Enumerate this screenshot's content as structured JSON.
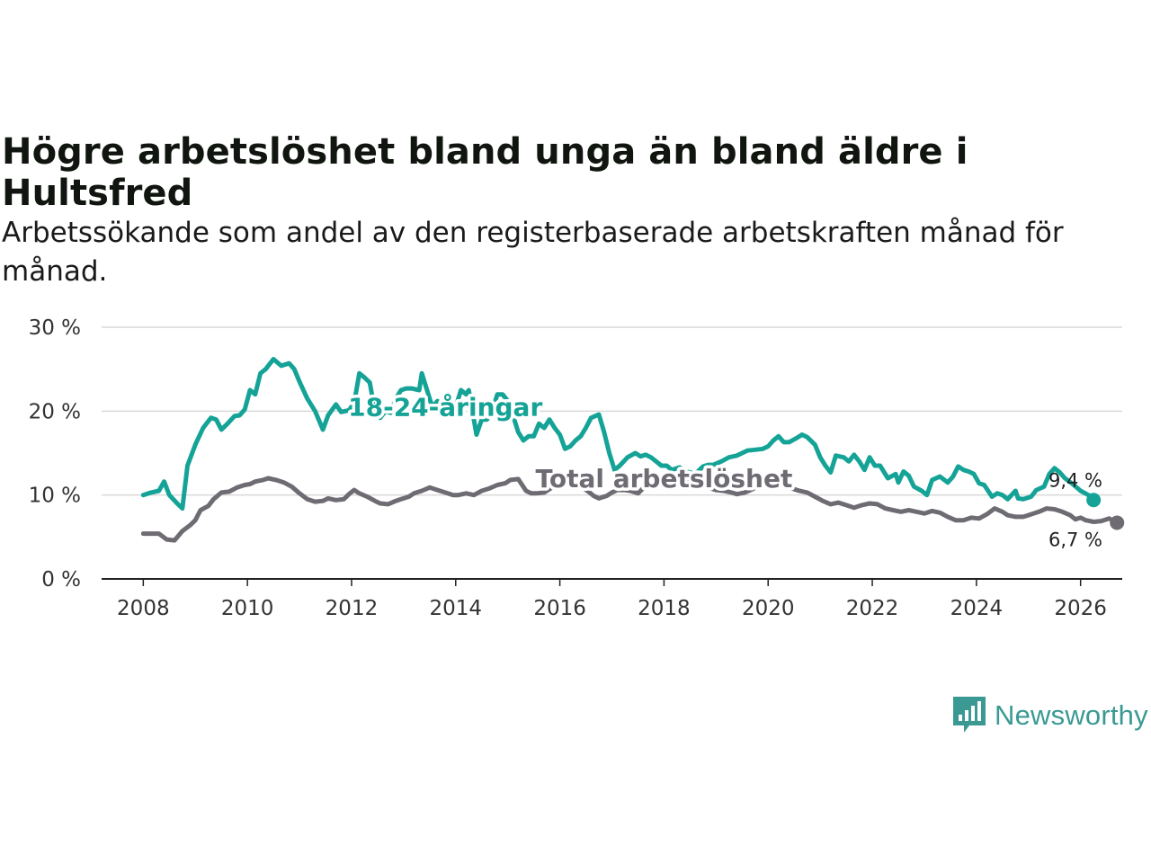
{
  "title": "Högre arbetslöshet bland unga än bland äldre i Hultsfred",
  "subtitle": "Arbetssökande som andel av den registerbaserade arbetskraften månad för månad.",
  "brand": {
    "name": "Newsworthy",
    "color": "#3a9a93",
    "icon": "newsworthy-logo-icon"
  },
  "chart_data": {
    "type": "line",
    "xlim": [
      2007.2,
      2026.8
    ],
    "ylim": [
      0,
      30
    ],
    "yticks": [
      0,
      10,
      20,
      30
    ],
    "ytick_labels": [
      "0 %",
      "10 %",
      "20 %",
      "30 %"
    ],
    "xticks": [
      2008,
      2010,
      2012,
      2014,
      2016,
      2018,
      2020,
      2022,
      2024,
      2026
    ],
    "xtick_labels": [
      "2008",
      "2010",
      "2012",
      "2014",
      "2016",
      "2018",
      "2020",
      "2022",
      "2024",
      "2026"
    ],
    "grid": true,
    "series": [
      {
        "name": "18-24-åringar",
        "color": "#14a396",
        "label_at": [
          2013.8,
          20.5
        ],
        "end_label": "9,4 %",
        "points": [
          [
            2008.0,
            10.0
          ],
          [
            2008.15,
            10.3
          ],
          [
            2008.3,
            10.5
          ],
          [
            2008.4,
            11.6
          ],
          [
            2008.5,
            10.0
          ],
          [
            2008.65,
            9.0
          ],
          [
            2008.75,
            8.4
          ],
          [
            2008.85,
            13.5
          ],
          [
            2009.0,
            16.0
          ],
          [
            2009.15,
            18.0
          ],
          [
            2009.3,
            19.2
          ],
          [
            2009.4,
            19.0
          ],
          [
            2009.5,
            17.8
          ],
          [
            2009.6,
            18.4
          ],
          [
            2009.75,
            19.4
          ],
          [
            2009.85,
            19.5
          ],
          [
            2009.95,
            20.2
          ],
          [
            2010.05,
            22.5
          ],
          [
            2010.15,
            22.0
          ],
          [
            2010.25,
            24.5
          ],
          [
            2010.35,
            25.0
          ],
          [
            2010.5,
            26.2
          ],
          [
            2010.65,
            25.4
          ],
          [
            2010.8,
            25.7
          ],
          [
            2010.9,
            25.0
          ],
          [
            2011.0,
            23.5
          ],
          [
            2011.15,
            21.5
          ],
          [
            2011.3,
            20.0
          ],
          [
            2011.45,
            17.8
          ],
          [
            2011.55,
            19.5
          ],
          [
            2011.7,
            20.8
          ],
          [
            2011.8,
            19.9
          ],
          [
            2011.95,
            20.1
          ],
          [
            2012.05,
            21.0
          ],
          [
            2012.15,
            24.5
          ],
          [
            2012.25,
            24.0
          ],
          [
            2012.35,
            23.4
          ],
          [
            2012.45,
            20.0
          ],
          [
            2012.55,
            19.2
          ],
          [
            2012.65,
            20.0
          ],
          [
            2012.75,
            19.8
          ],
          [
            2012.85,
            21.5
          ],
          [
            2012.95,
            22.5
          ],
          [
            2013.05,
            22.7
          ],
          [
            2013.15,
            22.7
          ],
          [
            2013.3,
            22.5
          ],
          [
            2013.35,
            24.5
          ],
          [
            2013.45,
            22.5
          ],
          [
            2013.55,
            20.5
          ],
          [
            2013.65,
            21.2
          ],
          [
            2013.75,
            20.3
          ],
          [
            2013.85,
            19.5
          ],
          [
            2013.95,
            19.5
          ],
          [
            2014.1,
            22.5
          ],
          [
            2014.2,
            22.0
          ],
          [
            2014.25,
            22.5
          ],
          [
            2014.4,
            17.2
          ],
          [
            2014.5,
            19.0
          ],
          [
            2014.6,
            19.0
          ],
          [
            2014.7,
            20.0
          ],
          [
            2014.8,
            22.0
          ],
          [
            2014.9,
            22.0
          ],
          [
            2015.0,
            21.2
          ],
          [
            2015.1,
            19.5
          ],
          [
            2015.2,
            17.5
          ],
          [
            2015.3,
            16.5
          ],
          [
            2015.4,
            17.0
          ],
          [
            2015.5,
            17.0
          ],
          [
            2015.6,
            18.5
          ],
          [
            2015.7,
            18.0
          ],
          [
            2015.8,
            19.0
          ],
          [
            2015.9,
            18.0
          ],
          [
            2016.0,
            17.2
          ],
          [
            2016.1,
            15.5
          ],
          [
            2016.2,
            15.8
          ],
          [
            2016.3,
            16.5
          ],
          [
            2016.4,
            17.0
          ],
          [
            2016.5,
            18.0
          ],
          [
            2016.6,
            19.2
          ],
          [
            2016.75,
            19.6
          ],
          [
            2016.85,
            17.5
          ],
          [
            2016.95,
            15.0
          ],
          [
            2017.05,
            13.0
          ],
          [
            2017.15,
            13.5
          ],
          [
            2017.3,
            14.5
          ],
          [
            2017.45,
            15.0
          ],
          [
            2017.55,
            14.6
          ],
          [
            2017.65,
            14.8
          ],
          [
            2017.75,
            14.5
          ],
          [
            2017.85,
            14.0
          ],
          [
            2017.95,
            13.5
          ],
          [
            2018.05,
            13.5
          ],
          [
            2018.15,
            13.0
          ],
          [
            2018.3,
            13.3
          ],
          [
            2018.4,
            12.8
          ],
          [
            2018.5,
            12.7
          ],
          [
            2018.6,
            12.5
          ],
          [
            2018.75,
            13.4
          ],
          [
            2018.85,
            13.6
          ],
          [
            2018.95,
            13.6
          ],
          [
            2019.1,
            14.0
          ],
          [
            2019.25,
            14.5
          ],
          [
            2019.4,
            14.7
          ],
          [
            2019.5,
            15.0
          ],
          [
            2019.6,
            15.3
          ],
          [
            2019.75,
            15.4
          ],
          [
            2019.9,
            15.5
          ],
          [
            2020.0,
            15.8
          ],
          [
            2020.1,
            16.5
          ],
          [
            2020.2,
            17.0
          ],
          [
            2020.3,
            16.3
          ],
          [
            2020.4,
            16.3
          ],
          [
            2020.55,
            16.8
          ],
          [
            2020.65,
            17.2
          ],
          [
            2020.75,
            16.9
          ],
          [
            2020.9,
            16.0
          ],
          [
            2021.0,
            14.5
          ],
          [
            2021.1,
            13.5
          ],
          [
            2021.2,
            12.7
          ],
          [
            2021.3,
            14.7
          ],
          [
            2021.45,
            14.5
          ],
          [
            2021.55,
            14.0
          ],
          [
            2021.65,
            14.8
          ],
          [
            2021.75,
            14.0
          ],
          [
            2021.85,
            13.0
          ],
          [
            2021.95,
            14.5
          ],
          [
            2022.05,
            13.5
          ],
          [
            2022.15,
            13.5
          ],
          [
            2022.3,
            12.0
          ],
          [
            2022.45,
            12.5
          ],
          [
            2022.5,
            11.5
          ],
          [
            2022.6,
            12.8
          ],
          [
            2022.7,
            12.3
          ],
          [
            2022.8,
            11.0
          ],
          [
            2022.95,
            10.5
          ],
          [
            2023.05,
            10.0
          ],
          [
            2023.15,
            11.8
          ],
          [
            2023.3,
            12.2
          ],
          [
            2023.45,
            11.5
          ],
          [
            2023.55,
            12.2
          ],
          [
            2023.65,
            13.4
          ],
          [
            2023.75,
            13.0
          ],
          [
            2023.85,
            12.8
          ],
          [
            2023.95,
            12.5
          ],
          [
            2024.05,
            11.4
          ],
          [
            2024.15,
            11.2
          ],
          [
            2024.3,
            9.8
          ],
          [
            2024.4,
            10.2
          ],
          [
            2024.5,
            10.0
          ],
          [
            2024.6,
            9.5
          ],
          [
            2024.75,
            10.5
          ],
          [
            2024.8,
            9.6
          ],
          [
            2024.9,
            9.5
          ],
          [
            2025.05,
            9.8
          ],
          [
            2025.15,
            10.6
          ],
          [
            2025.3,
            11.0
          ],
          [
            2025.4,
            12.5
          ],
          [
            2025.5,
            13.2
          ],
          [
            2025.6,
            12.7
          ],
          [
            2025.7,
            12.0
          ],
          [
            2025.85,
            11.3
          ],
          [
            2026.0,
            10.5
          ],
          [
            2026.15,
            10.0
          ],
          [
            2026.25,
            9.4
          ]
        ]
      },
      {
        "name": "Total arbetslöshet",
        "color": "#6e6b73",
        "label_at": [
          2018.0,
          12.0
        ],
        "end_label": "6,7 %",
        "points": [
          [
            2008.0,
            5.4
          ],
          [
            2008.3,
            5.4
          ],
          [
            2008.45,
            4.7
          ],
          [
            2008.6,
            4.6
          ],
          [
            2008.75,
            5.7
          ],
          [
            2008.9,
            6.4
          ],
          [
            2009.0,
            7.0
          ],
          [
            2009.1,
            8.2
          ],
          [
            2009.25,
            8.7
          ],
          [
            2009.35,
            9.5
          ],
          [
            2009.5,
            10.3
          ],
          [
            2009.65,
            10.4
          ],
          [
            2009.8,
            10.9
          ],
          [
            2009.95,
            11.2
          ],
          [
            2010.05,
            11.3
          ],
          [
            2010.15,
            11.6
          ],
          [
            2010.3,
            11.8
          ],
          [
            2010.4,
            12.0
          ],
          [
            2010.55,
            11.8
          ],
          [
            2010.7,
            11.5
          ],
          [
            2010.85,
            11.0
          ],
          [
            2011.0,
            10.2
          ],
          [
            2011.15,
            9.5
          ],
          [
            2011.3,
            9.2
          ],
          [
            2011.45,
            9.3
          ],
          [
            2011.55,
            9.6
          ],
          [
            2011.7,
            9.4
          ],
          [
            2011.85,
            9.5
          ],
          [
            2011.95,
            10.1
          ],
          [
            2012.05,
            10.6
          ],
          [
            2012.15,
            10.2
          ],
          [
            2012.3,
            9.8
          ],
          [
            2012.45,
            9.3
          ],
          [
            2012.55,
            9.0
          ],
          [
            2012.7,
            8.9
          ],
          [
            2012.85,
            9.3
          ],
          [
            2012.95,
            9.5
          ],
          [
            2013.1,
            9.8
          ],
          [
            2013.2,
            10.2
          ],
          [
            2013.35,
            10.5
          ],
          [
            2013.5,
            10.9
          ],
          [
            2013.65,
            10.6
          ],
          [
            2013.8,
            10.3
          ],
          [
            2013.95,
            10.0
          ],
          [
            2014.05,
            10.0
          ],
          [
            2014.2,
            10.2
          ],
          [
            2014.35,
            10.0
          ],
          [
            2014.5,
            10.5
          ],
          [
            2014.65,
            10.8
          ],
          [
            2014.8,
            11.2
          ],
          [
            2014.95,
            11.4
          ],
          [
            2015.05,
            11.8
          ],
          [
            2015.2,
            11.9
          ],
          [
            2015.35,
            10.5
          ],
          [
            2015.45,
            10.2
          ],
          [
            2015.55,
            10.2
          ],
          [
            2015.7,
            10.3
          ],
          [
            2015.85,
            10.9
          ],
          [
            2015.95,
            11.3
          ],
          [
            2016.05,
            12.0
          ],
          [
            2016.15,
            11.8
          ],
          [
            2016.3,
            11.1
          ],
          [
            2016.4,
            11.0
          ],
          [
            2016.55,
            10.4
          ],
          [
            2016.65,
            9.9
          ],
          [
            2016.75,
            9.6
          ],
          [
            2016.9,
            9.9
          ],
          [
            2017.0,
            10.3
          ],
          [
            2017.1,
            10.6
          ],
          [
            2017.25,
            10.6
          ],
          [
            2017.35,
            10.5
          ],
          [
            2017.5,
            10.2
          ],
          [
            2017.6,
            10.8
          ],
          [
            2017.75,
            11.3
          ],
          [
            2017.9,
            11.5
          ],
          [
            2018.0,
            12.0
          ],
          [
            2018.15,
            12.0
          ],
          [
            2018.3,
            11.8
          ],
          [
            2018.45,
            11.5
          ],
          [
            2018.6,
            11.2
          ],
          [
            2018.75,
            11.0
          ],
          [
            2018.9,
            10.8
          ],
          [
            2019.0,
            10.6
          ],
          [
            2019.15,
            10.5
          ],
          [
            2019.3,
            10.3
          ],
          [
            2019.4,
            10.1
          ],
          [
            2019.55,
            10.3
          ],
          [
            2019.7,
            10.7
          ],
          [
            2019.85,
            11.2
          ],
          [
            2020.0,
            11.5
          ],
          [
            2020.15,
            11.3
          ],
          [
            2020.3,
            11.0
          ],
          [
            2020.45,
            10.8
          ],
          [
            2020.6,
            10.5
          ],
          [
            2020.75,
            10.3
          ],
          [
            2020.9,
            9.8
          ],
          [
            2021.05,
            9.3
          ],
          [
            2021.2,
            8.9
          ],
          [
            2021.35,
            9.1
          ],
          [
            2021.5,
            8.8
          ],
          [
            2021.65,
            8.5
          ],
          [
            2021.8,
            8.8
          ],
          [
            2021.95,
            9.0
          ],
          [
            2022.1,
            8.9
          ],
          [
            2022.25,
            8.4
          ],
          [
            2022.4,
            8.2
          ],
          [
            2022.55,
            8.0
          ],
          [
            2022.7,
            8.2
          ],
          [
            2022.85,
            8.0
          ],
          [
            2023.0,
            7.8
          ],
          [
            2023.15,
            8.1
          ],
          [
            2023.3,
            7.9
          ],
          [
            2023.45,
            7.4
          ],
          [
            2023.6,
            7.0
          ],
          [
            2023.75,
            7.0
          ],
          [
            2023.9,
            7.3
          ],
          [
            2024.05,
            7.2
          ],
          [
            2024.2,
            7.7
          ],
          [
            2024.35,
            8.4
          ],
          [
            2024.5,
            8.0
          ],
          [
            2024.6,
            7.6
          ],
          [
            2024.75,
            7.4
          ],
          [
            2024.9,
            7.4
          ],
          [
            2025.05,
            7.7
          ],
          [
            2025.2,
            8.0
          ],
          [
            2025.35,
            8.4
          ],
          [
            2025.5,
            8.3
          ],
          [
            2025.65,
            8.0
          ],
          [
            2025.8,
            7.6
          ],
          [
            2025.9,
            7.1
          ],
          [
            2026.0,
            7.3
          ],
          [
            2026.1,
            7.0
          ],
          [
            2026.25,
            6.8
          ],
          [
            2026.4,
            6.9
          ],
          [
            2026.55,
            7.2
          ],
          [
            2026.7,
            6.7
          ]
        ]
      }
    ]
  }
}
